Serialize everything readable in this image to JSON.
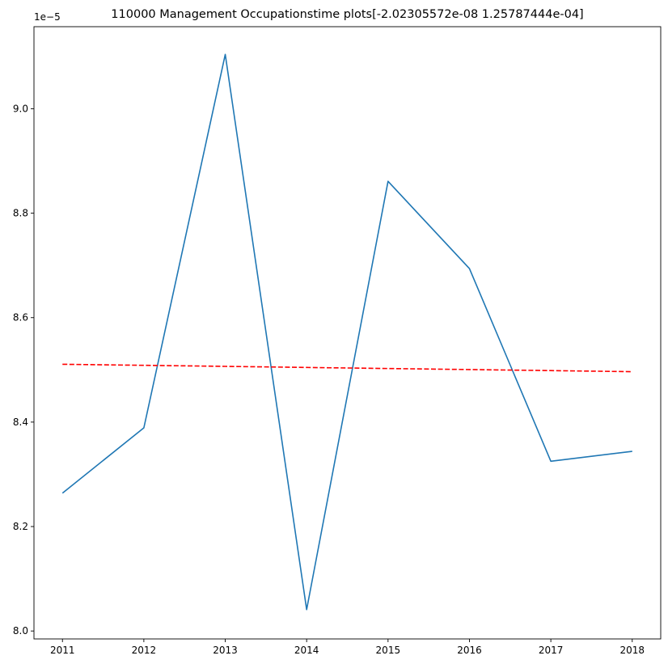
{
  "chart_data": {
    "type": "line",
    "title": "110000 Management Occupationstime plots[-2.02305572e-08  1.25787444e-04]",
    "xlabel": "",
    "ylabel": "",
    "y_offset_label": "1e−5",
    "x": [
      2011,
      2012,
      2013,
      2014,
      2015,
      2016,
      2017,
      2018
    ],
    "x_tick_labels": [
      "2011",
      "2012",
      "2013",
      "2014",
      "2015",
      "2016",
      "2017",
      "2018"
    ],
    "y_tick_values": [
      8.0,
      8.2,
      8.4,
      8.6,
      8.8,
      9.0
    ],
    "y_tick_labels": [
      "8.0",
      "8.2",
      "8.4",
      "8.6",
      "8.8",
      "9.0"
    ],
    "xlim": [
      2010.65,
      2018.35
    ],
    "ylim": [
      7.9848,
      9.1571
    ],
    "grid": false,
    "series": [
      {
        "values": [
          8.264,
          8.389,
          9.104,
          8.041,
          8.861,
          8.694,
          8.325,
          8.344
        ],
        "color": "#1f77b4",
        "style": "solid"
      },
      {
        "values": [
          8.5107,
          8.5087,
          8.5067,
          8.5046,
          8.5026,
          8.5006,
          8.4986,
          8.4965
        ],
        "color": "#ff0000",
        "style": "dashed"
      }
    ]
  }
}
